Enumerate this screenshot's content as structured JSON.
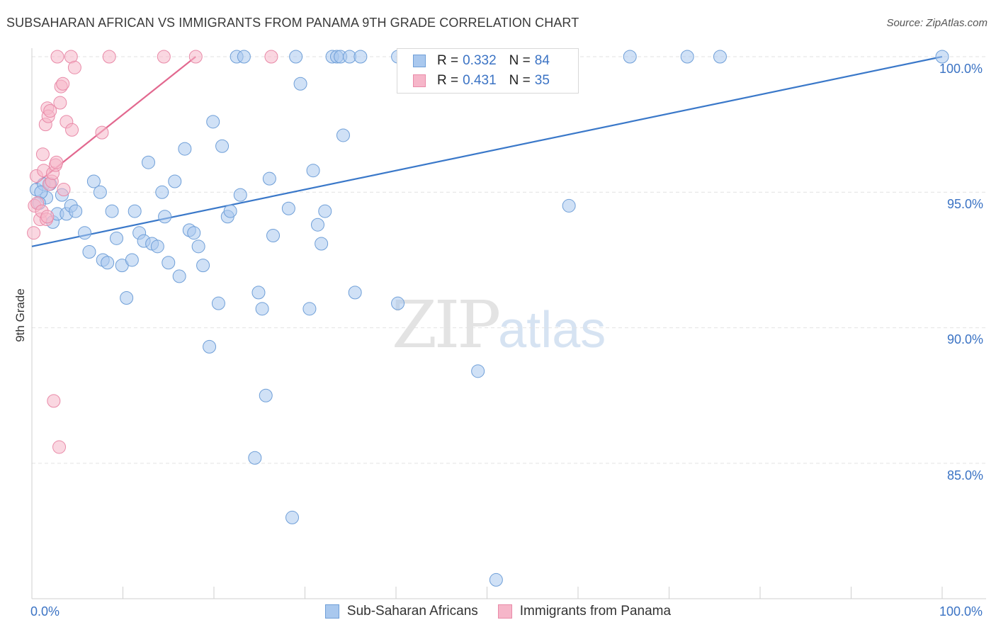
{
  "header": {
    "title": "SUBSAHARAN AFRICAN VS IMMIGRANTS FROM PANAMA 9TH GRADE CORRELATION CHART",
    "source": "Source: ZipAtlas.com"
  },
  "watermark": {
    "zip": "ZIP",
    "atlas": "atlas"
  },
  "legend": {
    "rows": [
      {
        "r_label": "R =",
        "r_value": "0.332",
        "n_label": "N =",
        "n_value": "84",
        "color": "#a9c8ee",
        "border": "#6f9fd8"
      },
      {
        "r_label": "R =",
        "r_value": "0.431",
        "n_label": "N =",
        "n_value": "35",
        "color": "#f6b6c9",
        "border": "#e98aa8"
      }
    ]
  },
  "bottom_legend": [
    {
      "label": "Sub-Saharan Africans",
      "color": "#a9c8ee",
      "border": "#6f9fd8"
    },
    {
      "label": "Immigrants from Panama",
      "color": "#f6b6c9",
      "border": "#e98aa8"
    }
  ],
  "axes": {
    "ylabel": "9th Grade",
    "x_left_label": "0.0%",
    "x_right_label": "100.0%",
    "y_tick_labels": [
      "100.0%",
      "95.0%",
      "90.0%",
      "85.0%"
    ]
  },
  "chart_data": {
    "type": "scatter",
    "title": "SUBSAHARAN AFRICAN VS IMMIGRANTS FROM PANAMA 9TH GRADE CORRELATION CHART",
    "xlabel": "",
    "ylabel": "9th Grade",
    "xlim": [
      0,
      100
    ],
    "ylim": [
      80.5,
      100.7
    ],
    "y_ticks": [
      100,
      95,
      90,
      85
    ],
    "grid": true,
    "series": [
      {
        "name": "Sub-Saharan Africans",
        "color": "#a9c8ee",
        "stroke": "#6f9fd8",
        "trend": {
          "x": [
            0,
            100
          ],
          "y": [
            93.0,
            100.0
          ],
          "color": "#3a78c9"
        },
        "points": [
          [
            0.5,
            95.1
          ],
          [
            1.3,
            95.3
          ],
          [
            1.6,
            94.8
          ],
          [
            2.0,
            95.3
          ],
          [
            2.3,
            93.9
          ],
          [
            2.8,
            94.2
          ],
          [
            3.3,
            94.9
          ],
          [
            3.8,
            94.2
          ],
          [
            4.3,
            94.5
          ],
          [
            4.8,
            94.3
          ],
          [
            5.8,
            93.5
          ],
          [
            6.3,
            92.8
          ],
          [
            6.8,
            95.4
          ],
          [
            7.5,
            95.0
          ],
          [
            7.8,
            92.5
          ],
          [
            8.3,
            92.4
          ],
          [
            8.8,
            94.3
          ],
          [
            9.3,
            93.3
          ],
          [
            9.9,
            92.3
          ],
          [
            10.4,
            91.1
          ],
          [
            11.0,
            92.5
          ],
          [
            11.3,
            94.3
          ],
          [
            11.8,
            93.5
          ],
          [
            12.3,
            93.2
          ],
          [
            12.8,
            96.1
          ],
          [
            13.2,
            93.1
          ],
          [
            13.8,
            93.0
          ],
          [
            14.3,
            95.0
          ],
          [
            14.6,
            94.1
          ],
          [
            15.0,
            92.4
          ],
          [
            15.7,
            95.4
          ],
          [
            16.2,
            91.9
          ],
          [
            16.8,
            96.6
          ],
          [
            17.3,
            93.6
          ],
          [
            17.8,
            93.5
          ],
          [
            18.3,
            93.0
          ],
          [
            18.8,
            92.3
          ],
          [
            19.5,
            89.3
          ],
          [
            19.9,
            97.6
          ],
          [
            20.5,
            90.9
          ],
          [
            20.9,
            96.7
          ],
          [
            21.5,
            94.1
          ],
          [
            21.8,
            94.3
          ],
          [
            22.5,
            100.0
          ],
          [
            22.9,
            94.9
          ],
          [
            23.3,
            100.0
          ],
          [
            24.5,
            85.2
          ],
          [
            24.9,
            91.3
          ],
          [
            25.3,
            90.7
          ],
          [
            25.7,
            87.5
          ],
          [
            26.1,
            95.5
          ],
          [
            26.5,
            93.4
          ],
          [
            28.2,
            94.4
          ],
          [
            28.6,
            83.0
          ],
          [
            29.0,
            100.0
          ],
          [
            29.5,
            99.0
          ],
          [
            30.5,
            90.7
          ],
          [
            30.9,
            95.8
          ],
          [
            31.4,
            93.8
          ],
          [
            31.8,
            93.1
          ],
          [
            32.2,
            94.3
          ],
          [
            33.0,
            100.0
          ],
          [
            33.5,
            100.0
          ],
          [
            33.9,
            100.0
          ],
          [
            34.2,
            97.1
          ],
          [
            34.9,
            100.0
          ],
          [
            35.5,
            91.3
          ],
          [
            36.1,
            100.0
          ],
          [
            40.2,
            100.0
          ],
          [
            41.0,
            99.1
          ],
          [
            40.2,
            90.9
          ],
          [
            45.5,
            99.0
          ],
          [
            47.5,
            100.0
          ],
          [
            49.0,
            88.4
          ],
          [
            51.0,
            80.7
          ],
          [
            53.5,
            100.0
          ],
          [
            55.0,
            99.0
          ],
          [
            59.0,
            94.5
          ],
          [
            65.7,
            100.0
          ],
          [
            72.0,
            100.0
          ],
          [
            75.6,
            100.0
          ],
          [
            100.0,
            100.0
          ],
          [
            1.0,
            95.0
          ],
          [
            0.8,
            94.6
          ]
        ]
      },
      {
        "name": "Immigrants from Panama",
        "color": "#f6b6c9",
        "stroke": "#e98aa8",
        "trend": {
          "x": [
            0.4,
            18.0
          ],
          "y": [
            95.3,
            100.0
          ],
          "color": "#e2688f"
        },
        "points": [
          [
            0.2,
            93.5
          ],
          [
            0.3,
            94.5
          ],
          [
            0.5,
            95.6
          ],
          [
            0.6,
            94.6
          ],
          [
            0.9,
            94.0
          ],
          [
            1.1,
            94.3
          ],
          [
            1.2,
            96.4
          ],
          [
            1.3,
            95.8
          ],
          [
            1.5,
            97.5
          ],
          [
            1.6,
            94.0
          ],
          [
            1.7,
            94.1
          ],
          [
            1.7,
            98.1
          ],
          [
            1.8,
            97.8
          ],
          [
            1.9,
            95.3
          ],
          [
            2.0,
            98.0
          ],
          [
            2.2,
            95.4
          ],
          [
            2.3,
            95.7
          ],
          [
            2.4,
            87.3
          ],
          [
            2.6,
            96.0
          ],
          [
            2.7,
            96.1
          ],
          [
            2.8,
            100.0
          ],
          [
            3.0,
            85.6
          ],
          [
            3.1,
            98.3
          ],
          [
            3.2,
            98.9
          ],
          [
            3.4,
            99.0
          ],
          [
            3.5,
            95.1
          ],
          [
            3.8,
            97.6
          ],
          [
            4.3,
            100.0
          ],
          [
            4.4,
            97.3
          ],
          [
            4.7,
            99.6
          ],
          [
            7.7,
            97.2
          ],
          [
            8.5,
            100.0
          ],
          [
            14.5,
            100.0
          ],
          [
            18.0,
            100.0
          ],
          [
            26.3,
            100.0
          ]
        ]
      }
    ]
  }
}
